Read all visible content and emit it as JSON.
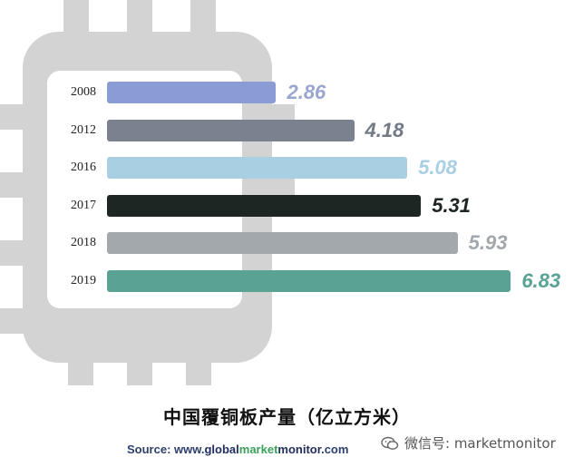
{
  "chart_data": {
    "type": "bar",
    "orientation": "horizontal",
    "title": "中国覆铜板产量（亿立方米）",
    "categories": [
      "2008",
      "2012",
      "2016",
      "2017",
      "2018",
      "2019"
    ],
    "values": [
      2.86,
      4.18,
      5.08,
      5.31,
      5.93,
      6.83
    ],
    "value_labels": [
      "2.86",
      "4.18",
      "5.08",
      "5.31",
      "5.93",
      "6.83"
    ],
    "bar_colors": [
      "#8b9bd4",
      "#7a8290",
      "#a9cfe3",
      "#1e2624",
      "#a3a8ad",
      "#5aa394"
    ],
    "label_colors": [
      "#9aa6cf",
      "#727a86",
      "#a9cfe3",
      "#1e2624",
      "#a3a8ad",
      "#5aa394"
    ],
    "xlim": [
      0,
      7
    ],
    "grid": false,
    "legend": "none"
  },
  "source": {
    "prefix": "Source: www.",
    "part_global": "global",
    "part_market": "market",
    "part_monitor": "monitor",
    "suffix": ".com"
  },
  "watermark": {
    "text": "微信号: marketmonitor",
    "icon": "wechat-icon"
  },
  "colors": {
    "chip": "#d3d3d3",
    "panel": "#ffffff"
  }
}
